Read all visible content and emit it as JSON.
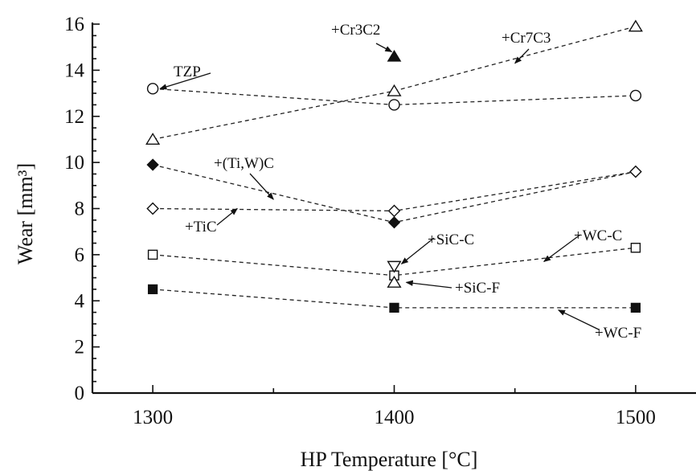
{
  "chart_data": {
    "type": "line",
    "title": "",
    "xlabel": "HP Temperature [°C]",
    "ylabel": "Wear [mm³]",
    "x": [
      1300,
      1400,
      1500
    ],
    "xlim": [
      1275,
      1525
    ],
    "ylim": [
      0,
      16
    ],
    "x_ticks": [
      "1300",
      "1400",
      "1500"
    ],
    "y_ticks": [
      "0",
      "2",
      "4",
      "6",
      "8",
      "10",
      "12",
      "14",
      "16"
    ],
    "grid": false,
    "legend": "none",
    "series": [
      {
        "name": "TZP",
        "marker": "circle-open",
        "points": [
          [
            1300,
            13.2
          ],
          [
            1400,
            12.5
          ],
          [
            1500,
            12.9
          ]
        ]
      },
      {
        "name": "+Cr7C3",
        "marker": "triangle-open",
        "points": [
          [
            1300,
            11.0
          ],
          [
            1400,
            13.1
          ],
          [
            1500,
            15.9
          ]
        ]
      },
      {
        "name": "+Cr3C2",
        "marker": "triangle-filled",
        "points": [
          [
            1400,
            14.6
          ]
        ]
      },
      {
        "name": "+(Ti,W)C",
        "marker": "diamond-filled",
        "points": [
          [
            1300,
            9.9
          ],
          [
            1400,
            7.4
          ],
          [
            1500,
            9.6
          ]
        ]
      },
      {
        "name": "+TiC",
        "marker": "diamond-open",
        "points": [
          [
            1300,
            8.0
          ],
          [
            1400,
            7.9
          ],
          [
            1500,
            9.6
          ]
        ]
      },
      {
        "name": "+WC-C",
        "marker": "square-open",
        "points": [
          [
            1300,
            6.0
          ],
          [
            1400,
            5.1
          ],
          [
            1500,
            6.3
          ]
        ]
      },
      {
        "name": "+SiC-C",
        "marker": "triangle-down-open",
        "points": [
          [
            1400,
            5.5
          ]
        ]
      },
      {
        "name": "+SiC-F",
        "marker": "triangle-open",
        "points": [
          [
            1400,
            4.8
          ]
        ]
      },
      {
        "name": "+WC-F",
        "marker": "square-filled",
        "points": [
          [
            1300,
            4.5
          ],
          [
            1400,
            3.7
          ],
          [
            1500,
            3.7
          ]
        ]
      }
    ],
    "annotations": [
      {
        "id": "tzp",
        "text": "TZP",
        "target": [
          1303,
          13.2
        ]
      },
      {
        "id": "cr3c2",
        "text": "+Cr3C2",
        "target": [
          1399,
          14.8
        ]
      },
      {
        "id": "cr7c3",
        "text": "+Cr7C3",
        "target": [
          1450,
          14.3
        ]
      },
      {
        "id": "tiwc",
        "text": "+(Ti,W)C",
        "target": [
          1350,
          8.4
        ]
      },
      {
        "id": "tic",
        "text": "+TiC",
        "target": [
          1335,
          8.0
        ]
      },
      {
        "id": "sicc",
        "text": "+SiC-C",
        "target": [
          1403,
          5.6
        ]
      },
      {
        "id": "wcc",
        "text": "+WC-C",
        "target": [
          1462,
          5.7
        ]
      },
      {
        "id": "sicf",
        "text": "+SiC-F",
        "target": [
          1405,
          4.8
        ]
      },
      {
        "id": "wcf",
        "text": "+WC-F",
        "target": [
          1468,
          3.6
        ]
      }
    ]
  }
}
